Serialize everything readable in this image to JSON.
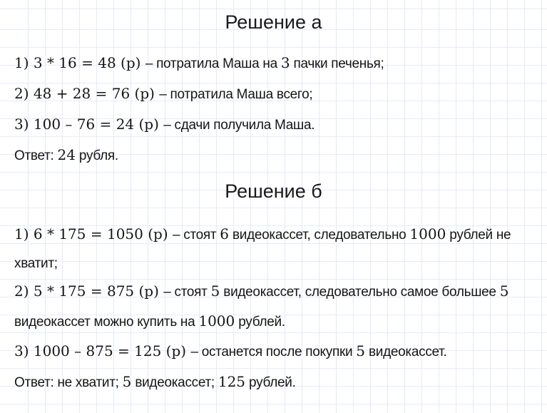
{
  "page": {
    "background_color": "#ffffff",
    "grid_line_color": "#e3eaf7",
    "grid_line_strong_color": "#d6e1f2",
    "text_color": "#151515"
  },
  "sections": [
    {
      "title": "Решение а",
      "rows": [
        {
          "segments": [
            {
              "f": "serif",
              "t": "1) 3 * 16 = 48 (р) "
            },
            {
              "f": "sans",
              "t": "– потратила Маша на "
            },
            {
              "f": "serif",
              "t": "3"
            },
            {
              "f": "sans",
              "t": " пачки печенья;"
            }
          ]
        },
        {
          "segments": [
            {
              "f": "serif",
              "t": "2) 48 + 28 = 76 (р) "
            },
            {
              "f": "sans",
              "t": "– потратила Маша всего;"
            }
          ]
        },
        {
          "segments": [
            {
              "f": "serif",
              "t": "3) 100 – 76 = 24 (р) "
            },
            {
              "f": "sans",
              "t": "– сдачи получила Маша."
            }
          ]
        },
        {
          "segments": [
            {
              "f": "sans",
              "t": "Ответ: "
            },
            {
              "f": "serif",
              "t": "24"
            },
            {
              "f": "sans",
              "t": " рубля."
            }
          ]
        }
      ]
    },
    {
      "title": "Решение б",
      "rows": [
        {
          "segments": [
            {
              "f": "serif",
              "t": "1) 6 * 175 = 1050 (р) "
            },
            {
              "f": "sans",
              "t": "– стоят "
            },
            {
              "f": "serif",
              "t": "6"
            },
            {
              "f": "sans",
              "t": " видеокассет, следовательно "
            },
            {
              "f": "serif",
              "t": "1000"
            },
            {
              "f": "sans",
              "t": " рублей не"
            }
          ]
        },
        {
          "segments": [
            {
              "f": "sans",
              "t": "хватит;"
            }
          ]
        },
        {
          "segments": [
            {
              "f": "serif",
              "t": "2) 5 * 175 = 875 (р) "
            },
            {
              "f": "sans",
              "t": "– стоят "
            },
            {
              "f": "serif",
              "t": "5"
            },
            {
              "f": "sans",
              "t": " видеокассет, следовательно самое большее "
            },
            {
              "f": "serif",
              "t": "5"
            }
          ]
        },
        {
          "segments": [
            {
              "f": "sans",
              "t": "видеокассет можно купить на "
            },
            {
              "f": "serif",
              "t": "1000"
            },
            {
              "f": "sans",
              "t": " рублей."
            }
          ]
        },
        {
          "segments": [
            {
              "f": "serif",
              "t": "3) 1000 – 875 = 125 (р) "
            },
            {
              "f": "sans",
              "t": "– останется после покупки "
            },
            {
              "f": "serif",
              "t": "5"
            },
            {
              "f": "sans",
              "t": " видеокассет."
            }
          ]
        },
        {
          "segments": [
            {
              "f": "sans",
              "t": "Ответ: не хватит; "
            },
            {
              "f": "serif",
              "t": "5"
            },
            {
              "f": "sans",
              "t": " видеокассет; "
            },
            {
              "f": "serif",
              "t": "125"
            },
            {
              "f": "sans",
              "t": " рублей."
            }
          ]
        }
      ]
    }
  ]
}
